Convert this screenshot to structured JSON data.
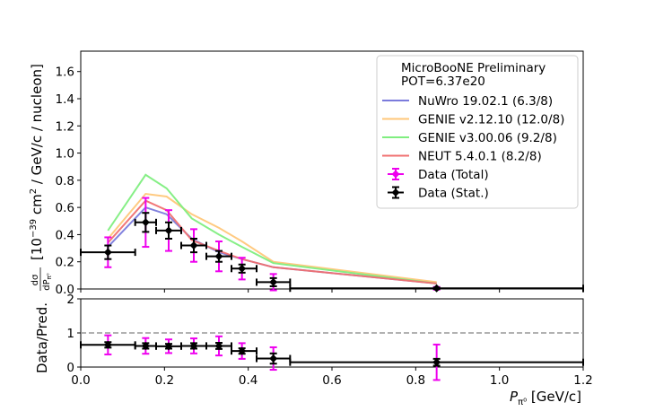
{
  "chart_data": [
    {
      "type": "line",
      "panel": "main",
      "ylabel_prefix": "[10",
      "ylabel_exp": "−39",
      "ylabel_unit": " cm",
      "ylabel_sq": "2",
      "ylabel_suffix": " / GeV/c / nucleon]",
      "ylabel_frac_num": "dσ",
      "ylabel_frac_den": "dP",
      "ylabel_frac_sub": "π⁰",
      "xlim": [
        0.0,
        1.2
      ],
      "ylim": [
        0.0,
        1.75
      ],
      "yticks": [
        "0.0",
        "0.2",
        "0.4",
        "0.6",
        "0.8",
        "1.0",
        "1.2",
        "1.4",
        "1.6"
      ],
      "ytick_values": [
        0,
        0.2,
        0.4,
        0.6,
        0.8,
        1.0,
        1.2,
        1.4,
        1.6
      ],
      "legend_placement": "top-right",
      "legend_title_1": "MicroBooNE Preliminary",
      "legend_title_2": "POT=6.37e20",
      "series": [
        {
          "name": "NuWro 19.02.1 (6.3/8)",
          "color": "#7b7bdc",
          "x": [
            0.065,
            0.155,
            0.205,
            0.265,
            0.33,
            0.385,
            0.46,
            0.85
          ],
          "y": [
            0.31,
            0.6,
            0.55,
            0.37,
            0.27,
            0.22,
            0.16,
            0.04
          ]
        },
        {
          "name": "GENIE v2.12.10 (12.0/8)",
          "color": "#ffc77a",
          "x": [
            0.065,
            0.155,
            0.205,
            0.265,
            0.33,
            0.385,
            0.46,
            0.85
          ],
          "y": [
            0.37,
            0.7,
            0.68,
            0.55,
            0.45,
            0.35,
            0.2,
            0.05
          ]
        },
        {
          "name": "GENIE v3.00.06 (9.2/8)",
          "color": "#80ee80",
          "x": [
            0.065,
            0.155,
            0.205,
            0.265,
            0.33,
            0.385,
            0.46,
            0.85
          ],
          "y": [
            0.43,
            0.84,
            0.74,
            0.52,
            0.4,
            0.31,
            0.19,
            0.04
          ]
        },
        {
          "name": "NEUT 5.4.0.1 (8.2/8)",
          "color": "#f07070",
          "x": [
            0.065,
            0.155,
            0.205,
            0.265,
            0.33,
            0.385,
            0.46,
            0.85
          ],
          "y": [
            0.34,
            0.65,
            0.58,
            0.36,
            0.28,
            0.22,
            0.16,
            0.04
          ]
        }
      ],
      "data_total": {
        "name": "Data (Total)",
        "color": "#ee00ee"
      },
      "data_stat": {
        "name": "Data (Stat.)",
        "color": "#000000"
      },
      "points": [
        {
          "x": 0.065,
          "xlo": 0.0,
          "xhi": 0.13,
          "y": 0.27,
          "stat": 0.05,
          "tot": 0.11
        },
        {
          "x": 0.155,
          "xlo": 0.13,
          "xhi": 0.18,
          "y": 0.49,
          "stat": 0.07,
          "tot": 0.18
        },
        {
          "x": 0.21,
          "xlo": 0.18,
          "xhi": 0.24,
          "y": 0.43,
          "stat": 0.06,
          "tot": 0.15
        },
        {
          "x": 0.27,
          "xlo": 0.24,
          "xhi": 0.3,
          "y": 0.32,
          "stat": 0.05,
          "tot": 0.12
        },
        {
          "x": 0.33,
          "xlo": 0.3,
          "xhi": 0.36,
          "y": 0.24,
          "stat": 0.04,
          "tot": 0.11
        },
        {
          "x": 0.385,
          "xlo": 0.36,
          "xhi": 0.42,
          "y": 0.15,
          "stat": 0.03,
          "tot": 0.08
        },
        {
          "x": 0.46,
          "xlo": 0.42,
          "xhi": 0.5,
          "y": 0.05,
          "stat": 0.03,
          "tot": 0.06
        },
        {
          "x": 0.85,
          "xlo": 0.5,
          "xhi": 1.2,
          "y": 0.005,
          "stat": 0.005,
          "tot": 0.01
        }
      ]
    },
    {
      "type": "scatter",
      "panel": "ratio",
      "ylabel": "Data/Pred.",
      "xlabel_main": "P",
      "xlabel_sub": "π⁰",
      "xlabel_unit": " [GeV/c]",
      "xlim": [
        0.0,
        1.2
      ],
      "ylim": [
        0,
        2
      ],
      "xticks": [
        "0.0",
        "0.2",
        "0.4",
        "0.6",
        "0.8",
        "1.0",
        "1.2"
      ],
      "xtick_values": [
        0,
        0.2,
        0.4,
        0.6,
        0.8,
        1.0,
        1.2
      ],
      "yticks": [
        "0",
        "1",
        "2"
      ],
      "ytick_values": [
        0,
        1,
        2
      ],
      "reference_line": 1,
      "points": [
        {
          "x": 0.065,
          "xlo": 0.0,
          "xhi": 0.13,
          "y": 0.65,
          "stat": 0.08,
          "tot": 0.28
        },
        {
          "x": 0.155,
          "xlo": 0.13,
          "xhi": 0.18,
          "y": 0.62,
          "stat": 0.08,
          "tot": 0.23
        },
        {
          "x": 0.21,
          "xlo": 0.18,
          "xhi": 0.24,
          "y": 0.61,
          "stat": 0.07,
          "tot": 0.2
        },
        {
          "x": 0.27,
          "xlo": 0.24,
          "xhi": 0.3,
          "y": 0.62,
          "stat": 0.08,
          "tot": 0.22
        },
        {
          "x": 0.33,
          "xlo": 0.3,
          "xhi": 0.36,
          "y": 0.62,
          "stat": 0.09,
          "tot": 0.28
        },
        {
          "x": 0.385,
          "xlo": 0.36,
          "xhi": 0.42,
          "y": 0.47,
          "stat": 0.08,
          "tot": 0.23
        },
        {
          "x": 0.46,
          "xlo": 0.42,
          "xhi": 0.5,
          "y": 0.25,
          "stat": 0.15,
          "tot": 0.33
        },
        {
          "x": 0.85,
          "xlo": 0.5,
          "xhi": 1.2,
          "y": 0.14,
          "stat": 0.1,
          "tot": 0.52
        }
      ]
    }
  ]
}
